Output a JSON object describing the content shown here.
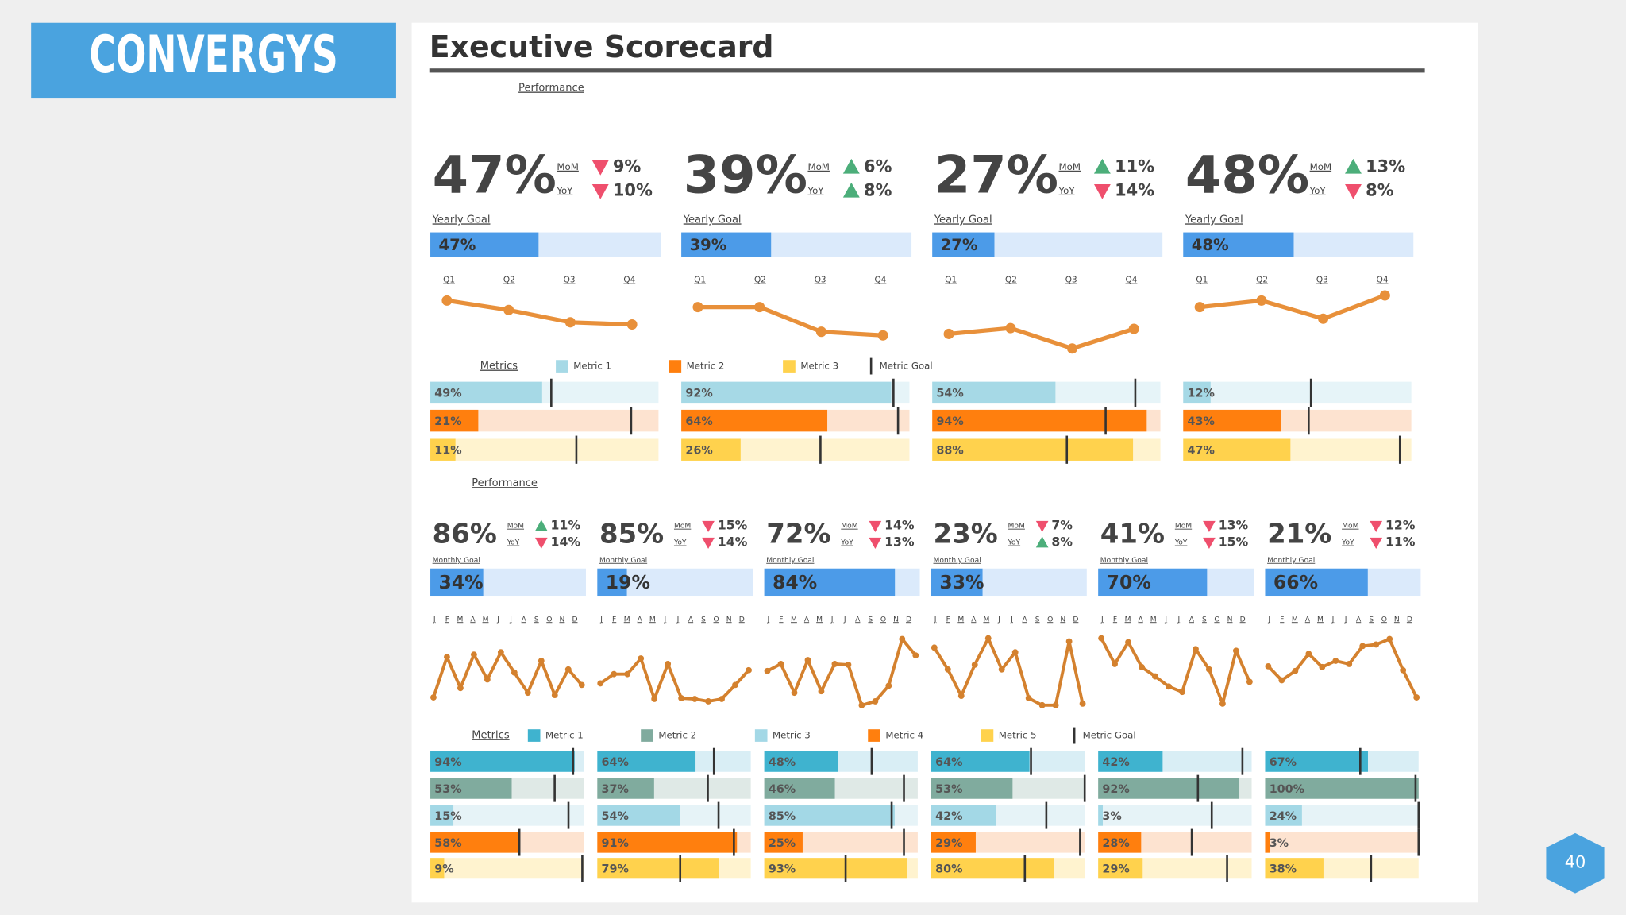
{
  "header": {
    "logo": "CONVERGYS",
    "title": "Executive Scorecard",
    "page": "40"
  },
  "arrow_colors": {
    "up": "#4cae7a",
    "down": "#ef4f6d"
  },
  "top": {
    "section": "Performance",
    "metrics_label": "Metrics",
    "goal_label": "Yearly Goal",
    "mom_label": "MoM",
    "yoy_label": "YoY",
    "quarters": [
      "Q1",
      "Q2",
      "Q3",
      "Q4"
    ],
    "trend_ylim": [
      0,
      100
    ],
    "trend_color": "#e8903a",
    "legend": [
      {
        "name": "Metric 1",
        "color": "#a6d9e6",
        "track": "#e6f4f8"
      },
      {
        "name": "Metric 2",
        "color": "#ff7f0e",
        "track": "#fde3d0"
      },
      {
        "name": "Metric 3",
        "color": "#ffd24d",
        "track": "#fff3cf"
      }
    ],
    "goal_legend": "Metric Goal",
    "goal_color": "#4c9be8",
    "goal_track": "#dbeafb",
    "panels": [
      {
        "value": "47%",
        "mom": {
          "dir": "down",
          "label": "9%"
        },
        "yoy": {
          "dir": "down",
          "label": "10%"
        },
        "goal": {
          "value": 47,
          "label": "47%"
        },
        "trend": [
          79,
          66,
          49,
          46
        ],
        "metrics": [
          {
            "value": 49,
            "label": "49%",
            "goal": 53
          },
          {
            "value": 21,
            "label": "21%",
            "goal": 88
          },
          {
            "value": 11,
            "label": "11%",
            "goal": 64
          }
        ]
      },
      {
        "value": "39%",
        "mom": {
          "dir": "up",
          "label": "6%"
        },
        "yoy": {
          "dir": "up",
          "label": "8%"
        },
        "goal": {
          "value": 39,
          "label": "39%"
        },
        "trend": [
          70,
          70,
          36,
          31
        ],
        "metrics": [
          {
            "value": 92,
            "label": "92%",
            "goal": 93
          },
          {
            "value": 64,
            "label": "64%",
            "goal": 95
          },
          {
            "value": 26,
            "label": "26%",
            "goal": 61
          }
        ]
      },
      {
        "value": "27%",
        "mom": {
          "dir": "up",
          "label": "11%"
        },
        "yoy": {
          "dir": "down",
          "label": "14%"
        },
        "goal": {
          "value": 27,
          "label": "27%"
        },
        "trend": [
          33,
          41,
          13,
          40
        ],
        "metrics": [
          {
            "value": 54,
            "label": "54%",
            "goal": 89
          },
          {
            "value": 94,
            "label": "94%",
            "goal": 76
          },
          {
            "value": 88,
            "label": "88%",
            "goal": 59
          }
        ]
      },
      {
        "value": "48%",
        "mom": {
          "dir": "up",
          "label": "13%"
        },
        "yoy": {
          "dir": "down",
          "label": "8%"
        },
        "goal": {
          "value": 48,
          "label": "48%"
        },
        "trend": [
          70,
          79,
          54,
          86
        ],
        "metrics": [
          {
            "value": 12,
            "label": "12%",
            "goal": 56
          },
          {
            "value": 43,
            "label": "43%",
            "goal": 55
          },
          {
            "value": 47,
            "label": "47%",
            "goal": 95
          }
        ]
      }
    ]
  },
  "bottom": {
    "section": "Performance",
    "metrics_label": "Metrics",
    "goal_label": "Monthly Goal",
    "mom_label": "MoM",
    "yoy_label": "YoY",
    "months": [
      "J",
      "F",
      "M",
      "A",
      "M",
      "J",
      "J",
      "A",
      "S",
      "O",
      "N",
      "D"
    ],
    "trend_ylim": [
      0,
      100
    ],
    "trend_color": "#d4812e",
    "legend": [
      {
        "name": "Metric 1",
        "color": "#3fb3cf",
        "track": "#d9eef5"
      },
      {
        "name": "Metric 2",
        "color": "#80ab9e",
        "track": "#dfe9e6"
      },
      {
        "name": "Metric 3",
        "color": "#a3d8e6",
        "track": "#e6f3f7"
      },
      {
        "name": "Metric 4",
        "color": "#ff7f0e",
        "track": "#fde3d0"
      },
      {
        "name": "Metric 5",
        "color": "#ffd24d",
        "track": "#fff3cf"
      }
    ],
    "goal_legend": "Metric Goal",
    "goal_color": "#4c9be8",
    "goal_track": "#dbeafb",
    "panels": [
      {
        "value": "86%",
        "mom": {
          "dir": "up",
          "label": "11%"
        },
        "yoy": {
          "dir": "down",
          "label": "14%"
        },
        "goal": {
          "value": 34,
          "label": "34%"
        },
        "trend": [
          17,
          69,
          29,
          72,
          40,
          75,
          49,
          23,
          64,
          20,
          53,
          33
        ],
        "metrics": [
          {
            "value": 94,
            "label": "94%",
            "goal": 93
          },
          {
            "value": 53,
            "label": "53%",
            "goal": 81
          },
          {
            "value": 15,
            "label": "15%",
            "goal": 90
          },
          {
            "value": 58,
            "label": "58%",
            "goal": 58
          },
          {
            "value": 9,
            "label": "9%",
            "goal": 99
          }
        ]
      },
      {
        "value": "85%",
        "mom": {
          "dir": "down",
          "label": "15%"
        },
        "yoy": {
          "dir": "down",
          "label": "14%"
        },
        "goal": {
          "value": 19,
          "label": "19%"
        },
        "trend": [
          35,
          47,
          47,
          67,
          15,
          60,
          16,
          15,
          12,
          15,
          33,
          52
        ],
        "metrics": [
          {
            "value": 64,
            "label": "64%",
            "goal": 76
          },
          {
            "value": 37,
            "label": "37%",
            "goal": 72
          },
          {
            "value": 54,
            "label": "54%",
            "goal": 79
          },
          {
            "value": 91,
            "label": "91%",
            "goal": 89
          },
          {
            "value": 79,
            "label": "79%",
            "goal": 54
          }
        ]
      },
      {
        "value": "72%",
        "mom": {
          "dir": "down",
          "label": "14%"
        },
        "yoy": {
          "dir": "down",
          "label": "13%"
        },
        "goal": {
          "value": 84,
          "label": "84%"
        },
        "trend": [
          51,
          60,
          23,
          65,
          25,
          60,
          59,
          7,
          12,
          32,
          92,
          71
        ],
        "metrics": [
          {
            "value": 48,
            "label": "48%",
            "goal": 70
          },
          {
            "value": 46,
            "label": "46%",
            "goal": 91
          },
          {
            "value": 85,
            "label": "85%",
            "goal": 83
          },
          {
            "value": 25,
            "label": "25%",
            "goal": 91
          },
          {
            "value": 93,
            "label": "93%",
            "goal": 53
          }
        ]
      },
      {
        "value": "23%",
        "mom": {
          "dir": "down",
          "label": "7%"
        },
        "yoy": {
          "dir": "up",
          "label": "8%"
        },
        "goal": {
          "value": 33,
          "label": "33%"
        },
        "trend": [
          81,
          53,
          19,
          59,
          93,
          53,
          75,
          16,
          7,
          7,
          89,
          9
        ],
        "metrics": [
          {
            "value": 64,
            "label": "64%",
            "goal": 65
          },
          {
            "value": 53,
            "label": "53%",
            "goal": 100
          },
          {
            "value": 42,
            "label": "42%",
            "goal": 75
          },
          {
            "value": 29,
            "label": "29%",
            "goal": 97
          },
          {
            "value": 80,
            "label": "80%",
            "goal": 61
          }
        ]
      },
      {
        "value": "41%",
        "mom": {
          "dir": "down",
          "label": "13%"
        },
        "yoy": {
          "dir": "down",
          "label": "15%"
        },
        "goal": {
          "value": 70,
          "label": "70%"
        },
        "trend": [
          93,
          60,
          88,
          56,
          44,
          31,
          24,
          79,
          53,
          9,
          77,
          37
        ],
        "metrics": [
          {
            "value": 42,
            "label": "42%",
            "goal": 94
          },
          {
            "value": 92,
            "label": "92%",
            "goal": 65
          },
          {
            "value": 3,
            "label": "3%",
            "goal": 74
          },
          {
            "value": 28,
            "label": "28%",
            "goal": 61
          },
          {
            "value": 29,
            "label": "29%",
            "goal": 84
          }
        ]
      },
      {
        "value": "21%",
        "mom": {
          "dir": "down",
          "label": "12%"
        },
        "yoy": {
          "dir": "down",
          "label": "11%"
        },
        "goal": {
          "value": 66,
          "label": "66%"
        },
        "trend": [
          57,
          39,
          51,
          73,
          56,
          64,
          60,
          83,
          85,
          92,
          52,
          17
        ],
        "metrics": [
          {
            "value": 67,
            "label": "67%",
            "goal": 62
          },
          {
            "value": 100,
            "label": "100%",
            "goal": 98
          },
          {
            "value": 24,
            "label": "24%",
            "goal": 100
          },
          {
            "value": 3,
            "label": "3%",
            "goal": 100
          },
          {
            "value": 38,
            "label": "38%",
            "goal": 69
          }
        ]
      }
    ]
  }
}
